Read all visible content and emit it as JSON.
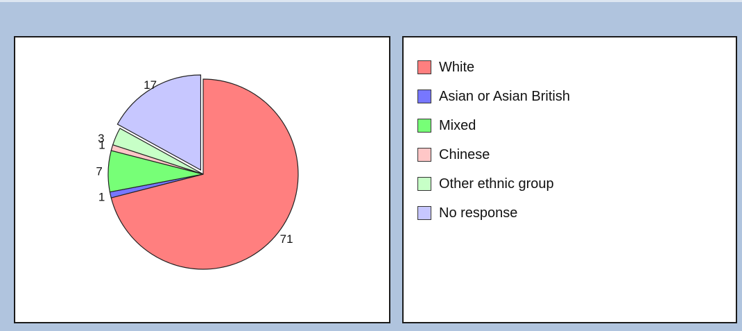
{
  "chart_data": {
    "type": "pie",
    "categories": [
      "White",
      "Asian or Asian British",
      "Mixed",
      "Chinese",
      "Other ethnic group",
      "No response"
    ],
    "values": [
      71,
      1,
      7,
      1,
      3,
      17
    ],
    "colors": [
      "#ff7f7f",
      "#7777ff",
      "#77ff77",
      "#ffc7c7",
      "#c7ffc7",
      "#c7c7ff"
    ],
    "exploded": "No response",
    "legend_position": "right"
  },
  "legend": {
    "items": [
      {
        "label": "White",
        "color": "#ff7f7f"
      },
      {
        "label": "Asian or Asian British",
        "color": "#7777ff"
      },
      {
        "label": "Mixed",
        "color": "#77ff77"
      },
      {
        "label": "Chinese",
        "color": "#ffc7c7"
      },
      {
        "label": "Other ethnic group",
        "color": "#c7ffc7"
      },
      {
        "label": "No response",
        "color": "#c7c7ff"
      }
    ]
  }
}
